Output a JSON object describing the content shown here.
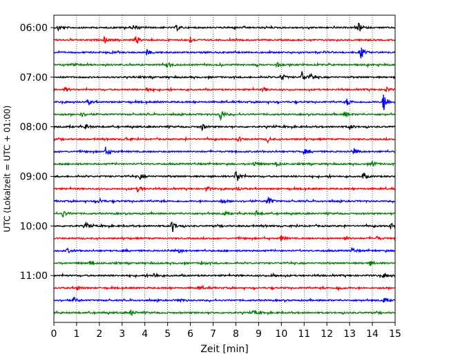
{
  "chart_data": {
    "type": "line",
    "title": "",
    "xlabel": "Zeit  [min]",
    "ylabel": "UTC (Lokalzeit = UTC + 01:00)",
    "xlim": [
      0,
      15
    ],
    "x_ticks": [
      0,
      1,
      2,
      3,
      4,
      5,
      6,
      7,
      8,
      9,
      10,
      11,
      12,
      13,
      14,
      15
    ],
    "y_tick_labels": [
      "06:00",
      "07:00",
      "08:00",
      "09:00",
      "10:00",
      "11:00"
    ],
    "grid": "vertical dotted lines at each minute",
    "trace_interval_minutes": 15,
    "trace_colors": [
      "#000000",
      "#ff0000",
      "#0000ff",
      "#008000"
    ],
    "traces": [
      {
        "start": "06:00",
        "events": [
          [
            0.2,
            5
          ],
          [
            3.5,
            4
          ],
          [
            5.4,
            4
          ],
          [
            13.4,
            6
          ]
        ]
      },
      {
        "start": "06:15",
        "events": [
          [
            2.2,
            5
          ],
          [
            3.6,
            6
          ],
          [
            6.0,
            4
          ]
        ]
      },
      {
        "start": "06:30",
        "events": [
          [
            4.1,
            4
          ],
          [
            13.5,
            9
          ]
        ]
      },
      {
        "start": "06:45",
        "events": [
          [
            0.8,
            4
          ],
          [
            5.0,
            4
          ],
          [
            9.8,
            3
          ]
        ]
      },
      {
        "start": "07:00",
        "events": [
          [
            10.0,
            6
          ],
          [
            10.9,
            9
          ],
          [
            11.3,
            5
          ]
        ]
      },
      {
        "start": "07:15",
        "events": [
          [
            0.5,
            4
          ],
          [
            4.1,
            4
          ],
          [
            9.2,
            4
          ],
          [
            14.6,
            4
          ]
        ]
      },
      {
        "start": "07:30",
        "events": [
          [
            1.5,
            4
          ],
          [
            12.9,
            5
          ],
          [
            14.5,
            16
          ]
        ]
      },
      {
        "start": "07:45",
        "events": [
          [
            1.2,
            4
          ],
          [
            7.3,
            11
          ],
          [
            12.8,
            4
          ]
        ]
      },
      {
        "start": "08:00",
        "events": [
          [
            1.4,
            4
          ],
          [
            6.5,
            5
          ],
          [
            13.0,
            4
          ]
        ]
      },
      {
        "start": "08:15",
        "events": [
          [
            3.2,
            3
          ],
          [
            8.1,
            4
          ],
          [
            9.4,
            4
          ]
        ]
      },
      {
        "start": "08:30",
        "events": [
          [
            2.3,
            8
          ],
          [
            11.0,
            4
          ],
          [
            13.2,
            4
          ]
        ]
      },
      {
        "start": "08:45",
        "events": [
          [
            8.8,
            4
          ],
          [
            9.8,
            4
          ],
          [
            14.0,
            5
          ]
        ]
      },
      {
        "start": "09:00",
        "events": [
          [
            3.8,
            4
          ],
          [
            8.0,
            12
          ],
          [
            13.6,
            5
          ]
        ]
      },
      {
        "start": "09:15",
        "events": [
          [
            3.7,
            5
          ],
          [
            6.7,
            4
          ],
          [
            8.1,
            3
          ]
        ]
      },
      {
        "start": "09:30",
        "events": [
          [
            2.0,
            4
          ],
          [
            7.4,
            4
          ],
          [
            9.4,
            8
          ]
        ]
      },
      {
        "start": "09:45",
        "events": [
          [
            0.4,
            5
          ],
          [
            7.5,
            3
          ],
          [
            8.9,
            4
          ]
        ]
      },
      {
        "start": "10:00",
        "events": [
          [
            1.4,
            5
          ],
          [
            5.2,
            10
          ],
          [
            14.8,
            4
          ]
        ]
      },
      {
        "start": "10:15",
        "events": [
          [
            10.0,
            4
          ],
          [
            12.8,
            3
          ],
          [
            14.2,
            3
          ]
        ]
      },
      {
        "start": "10:30",
        "events": [
          [
            0.6,
            3
          ],
          [
            5.5,
            3
          ],
          [
            13.1,
            4
          ]
        ]
      },
      {
        "start": "10:45",
        "events": [
          [
            1.6,
            3
          ],
          [
            6.5,
            3
          ],
          [
            13.9,
            4
          ]
        ]
      },
      {
        "start": "11:00",
        "events": [
          [
            4.4,
            4
          ],
          [
            9.6,
            3
          ],
          [
            14.5,
            3
          ]
        ]
      },
      {
        "start": "11:15",
        "events": [
          [
            1.0,
            4
          ],
          [
            6.4,
            3
          ],
          [
            12.5,
            4
          ]
        ]
      },
      {
        "start": "11:30",
        "events": [
          [
            0.9,
            4
          ],
          [
            5.5,
            4
          ],
          [
            14.5,
            4
          ]
        ]
      },
      {
        "start": "11:45",
        "events": [
          [
            3.4,
            4
          ],
          [
            8.8,
            4
          ]
        ]
      }
    ]
  }
}
